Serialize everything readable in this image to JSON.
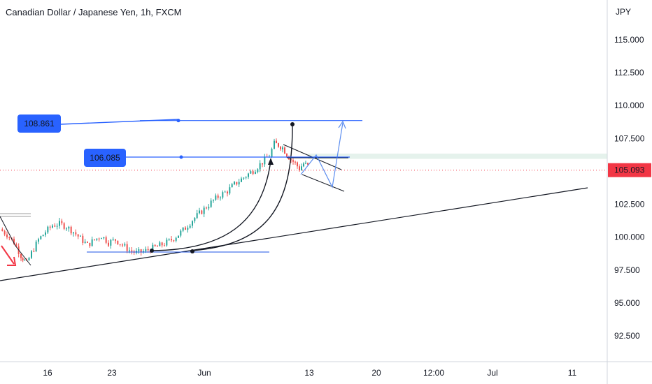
{
  "chart_data": {
    "type": "candlestick",
    "title": "Canadian Dollar / Japanese Yen, 1h, FXCM",
    "currency_label": "JPY",
    "y_ticks": [
      "115.000",
      "112.500",
      "110.000",
      "107.500",
      "105.093",
      "102.500",
      "100.000",
      "97.500",
      "95.000",
      "92.500"
    ],
    "x_ticks": [
      "16",
      "23",
      "Jun",
      "13",
      "20",
      "12:00",
      "Jul",
      "11"
    ],
    "last_price": {
      "label": "105.093",
      "value": 105.093,
      "color": "#f23645"
    },
    "ylim": [
      90.5,
      117.0
    ],
    "levels": [
      {
        "label": "108.861",
        "value": 108.861,
        "color": "#2962ff"
      },
      {
        "label": "106.085",
        "value": 106.085,
        "color": "#2962ff"
      }
    ],
    "colors": {
      "up": "#26a69a",
      "down": "#ef5350",
      "line": "#131722",
      "accent": "#2962ff",
      "zone": "#cfe8dc"
    },
    "price_series_approx": [
      [
        0,
        100.6
      ],
      [
        10,
        100.2
      ],
      [
        20,
        99.6
      ],
      [
        30,
        98.6
      ],
      [
        38,
        98.0
      ],
      [
        45,
        98.8
      ],
      [
        55,
        99.8
      ],
      [
        65,
        100.4
      ],
      [
        75,
        100.9
      ],
      [
        85,
        101.0
      ],
      [
        95,
        100.8
      ],
      [
        105,
        100.4
      ],
      [
        115,
        99.9
      ],
      [
        125,
        99.4
      ],
      [
        135,
        99.8
      ],
      [
        145,
        100.1
      ],
      [
        155,
        99.6
      ],
      [
        165,
        99.8
      ],
      [
        175,
        99.4
      ],
      [
        185,
        99.0
      ],
      [
        195,
        98.8
      ],
      [
        205,
        98.9
      ],
      [
        215,
        99.1
      ],
      [
        225,
        99.3
      ],
      [
        235,
        99.5
      ],
      [
        245,
        99.8
      ],
      [
        255,
        100.2
      ],
      [
        265,
        100.7
      ],
      [
        275,
        101.3
      ],
      [
        285,
        101.8
      ],
      [
        295,
        102.3
      ],
      [
        305,
        102.8
      ],
      [
        315,
        103.2
      ],
      [
        325,
        103.5
      ],
      [
        335,
        104.0
      ],
      [
        345,
        104.4
      ],
      [
        355,
        104.8
      ],
      [
        365,
        105.2
      ],
      [
        375,
        105.7
      ],
      [
        385,
        106.2
      ],
      [
        392,
        107.1
      ],
      [
        398,
        107.0
      ],
      [
        404,
        106.8
      ],
      [
        410,
        106.3
      ],
      [
        416,
        105.9
      ],
      [
        422,
        105.6
      ],
      [
        428,
        105.2
      ],
      [
        434,
        105.6
      ],
      [
        440,
        105.4
      ]
    ]
  }
}
